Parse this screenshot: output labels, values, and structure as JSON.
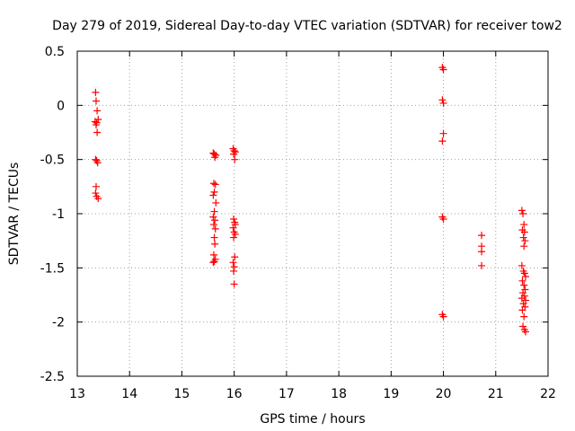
{
  "chart_data": {
    "type": "scatter",
    "title": "Day 279 of 2019, Sidereal Day-to-day VTEC variation (SDTVAR) for receiver tow2",
    "xlabel": "GPS time / hours",
    "ylabel": "SDTVAR / TECUs",
    "xlim": [
      13,
      22
    ],
    "ylim": [
      -2.5,
      0.5
    ],
    "xticks": [
      13,
      14,
      15,
      16,
      17,
      18,
      19,
      20,
      21,
      22
    ],
    "yticks": [
      0.5,
      0,
      -0.5,
      -1,
      -1.5,
      -2,
      -2.5
    ],
    "xtick_labels": [
      "13",
      "14",
      "15",
      "16",
      "17",
      "18",
      "19",
      "20",
      "21",
      "22"
    ],
    "ytick_labels": [
      "0.5",
      "0",
      "-0.5",
      "-1",
      "-1.5",
      "-2",
      "-2.5"
    ],
    "grid": true,
    "marker": "plus",
    "color": "#ff0000",
    "series": [
      {
        "name": "SDTVAR",
        "points": [
          [
            13.35,
            0.12
          ],
          [
            13.36,
            0.04
          ],
          [
            13.38,
            -0.05
          ],
          [
            13.34,
            -0.15
          ],
          [
            13.37,
            -0.16
          ],
          [
            13.4,
            -0.13
          ],
          [
            13.36,
            -0.18
          ],
          [
            13.38,
            -0.25
          ],
          [
            13.35,
            -0.5
          ],
          [
            13.37,
            -0.51
          ],
          [
            13.39,
            -0.53
          ],
          [
            13.36,
            -0.75
          ],
          [
            13.35,
            -0.81
          ],
          [
            13.37,
            -0.84
          ],
          [
            13.4,
            -0.86
          ],
          [
            15.6,
            -0.44
          ],
          [
            15.62,
            -0.45
          ],
          [
            15.65,
            -0.46
          ],
          [
            15.63,
            -0.48
          ],
          [
            15.61,
            -0.72
          ],
          [
            15.64,
            -0.73
          ],
          [
            15.62,
            -0.8
          ],
          [
            15.6,
            -0.83
          ],
          [
            15.65,
            -0.9
          ],
          [
            15.62,
            -0.98
          ],
          [
            15.6,
            -1.03
          ],
          [
            15.63,
            -1.06
          ],
          [
            15.61,
            -1.1
          ],
          [
            15.64,
            -1.14
          ],
          [
            15.62,
            -1.22
          ],
          [
            15.63,
            -1.28
          ],
          [
            15.61,
            -1.38
          ],
          [
            15.64,
            -1.42
          ],
          [
            15.62,
            -1.44
          ],
          [
            15.6,
            -1.45
          ],
          [
            15.98,
            -0.4
          ],
          [
            16.0,
            -0.42
          ],
          [
            16.02,
            -0.43
          ],
          [
            15.99,
            -0.45
          ],
          [
            16.01,
            -0.5
          ],
          [
            15.99,
            -1.05
          ],
          [
            16.01,
            -1.08
          ],
          [
            16.02,
            -1.1
          ],
          [
            15.98,
            -1.13
          ],
          [
            16.0,
            -1.17
          ],
          [
            16.02,
            -1.19
          ],
          [
            15.99,
            -1.22
          ],
          [
            16.01,
            -1.4
          ],
          [
            15.98,
            -1.45
          ],
          [
            16.0,
            -1.49
          ],
          [
            15.99,
            -1.53
          ],
          [
            16.0,
            -1.65
          ],
          [
            19.98,
            0.35
          ],
          [
            20.0,
            0.33
          ],
          [
            19.98,
            0.05
          ],
          [
            20.0,
            0.02
          ],
          [
            20.0,
            -0.26
          ],
          [
            19.98,
            -0.33
          ],
          [
            19.98,
            -1.03
          ],
          [
            20.0,
            -1.05
          ],
          [
            19.98,
            -1.93
          ],
          [
            20.0,
            -1.95
          ],
          [
            20.73,
            -1.2
          ],
          [
            20.73,
            -1.3
          ],
          [
            20.73,
            -1.35
          ],
          [
            20.73,
            -1.48
          ],
          [
            21.5,
            -0.97
          ],
          [
            21.52,
            -1.0
          ],
          [
            21.54,
            -1.1
          ],
          [
            21.51,
            -1.15
          ],
          [
            21.55,
            -1.17
          ],
          [
            21.53,
            -1.22
          ],
          [
            21.56,
            -1.25
          ],
          [
            21.54,
            -1.3
          ],
          [
            21.5,
            -1.48
          ],
          [
            21.53,
            -1.53
          ],
          [
            21.55,
            -1.55
          ],
          [
            21.57,
            -1.58
          ],
          [
            21.51,
            -1.62
          ],
          [
            21.54,
            -1.66
          ],
          [
            21.56,
            -1.7
          ],
          [
            21.52,
            -1.73
          ],
          [
            21.55,
            -1.76
          ],
          [
            21.5,
            -1.78
          ],
          [
            21.57,
            -1.8
          ],
          [
            21.53,
            -1.83
          ],
          [
            21.56,
            -1.86
          ],
          [
            21.51,
            -1.89
          ],
          [
            21.54,
            -1.95
          ],
          [
            21.52,
            -2.04
          ],
          [
            21.55,
            -2.07
          ],
          [
            21.57,
            -2.09
          ]
        ]
      }
    ]
  }
}
